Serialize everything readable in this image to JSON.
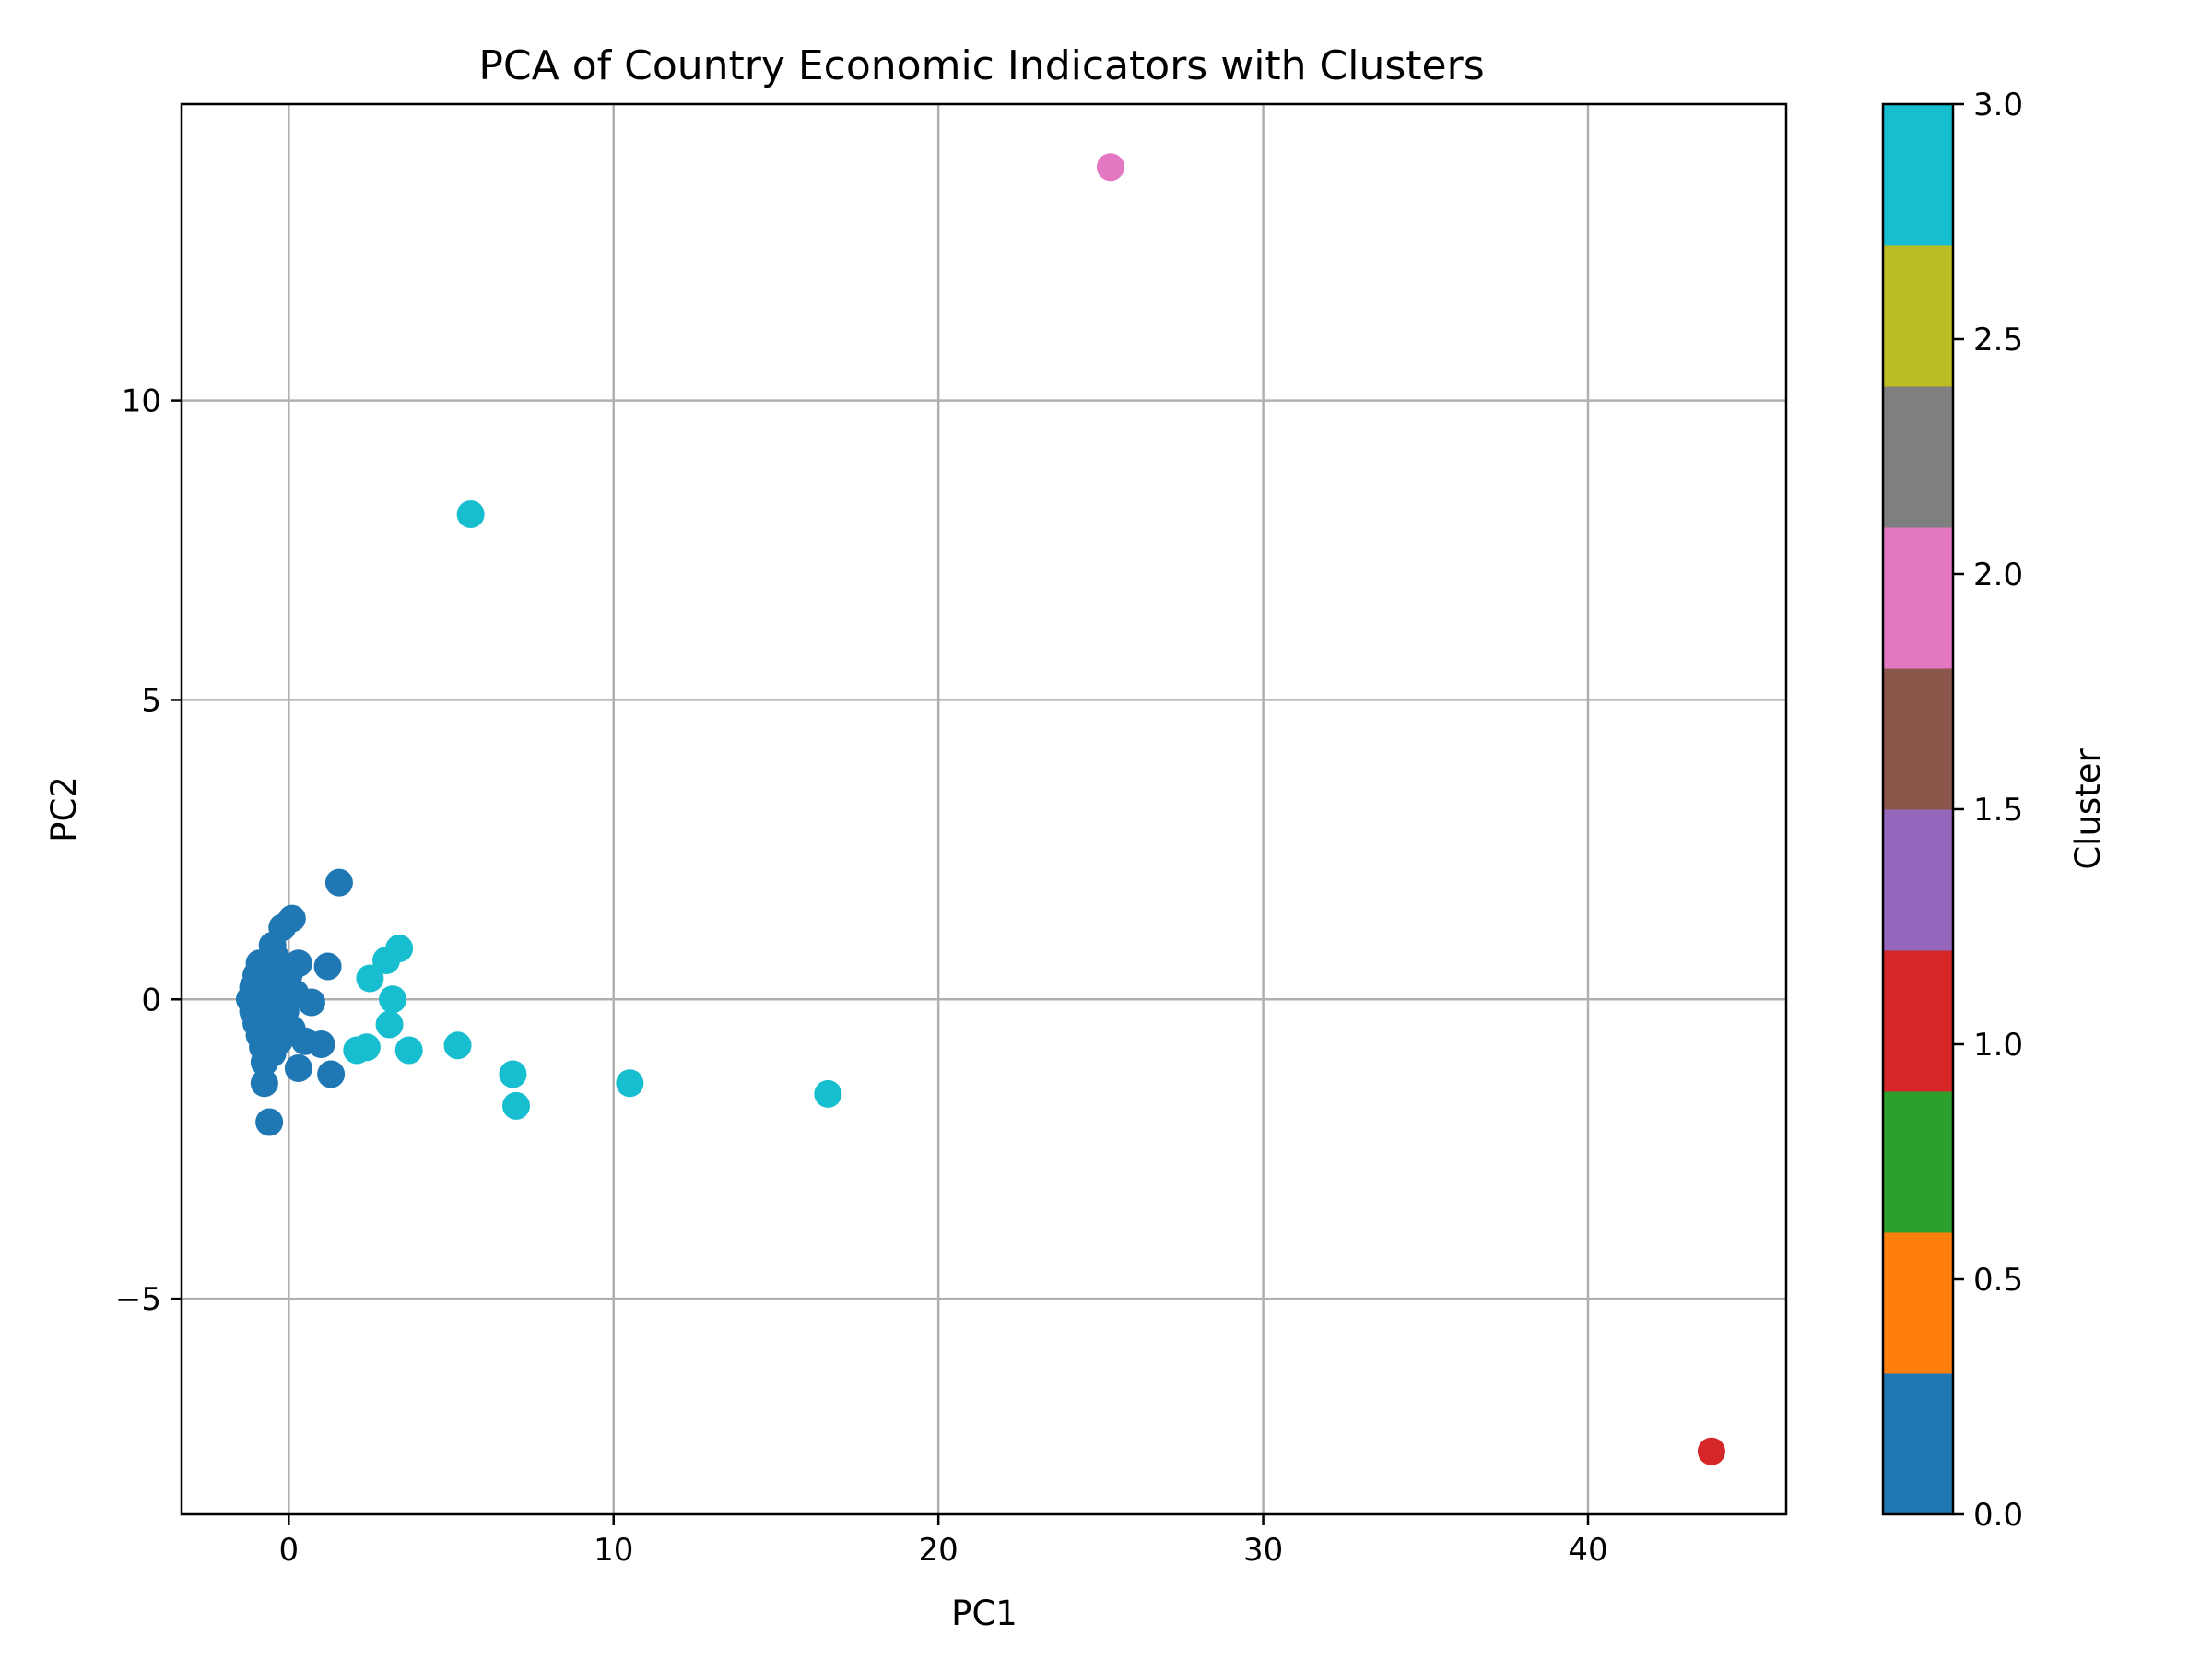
{
  "chart_data": {
    "type": "scatter",
    "title": "PCA of Country Economic Indicators with Clusters",
    "xlabel": "PC1",
    "ylabel": "PC2",
    "xlim": [
      -3.3,
      46.1
    ],
    "ylim": [
      -8.6,
      14.95
    ],
    "xticks": [
      0,
      10,
      20,
      30,
      40
    ],
    "yticks": [
      -5,
      0,
      5,
      10
    ],
    "xtick_labels": [
      "0",
      "10",
      "20",
      "30",
      "40"
    ],
    "ytick_labels": [
      "−5",
      "0",
      "5",
      "10"
    ],
    "grid": true,
    "colorbar": {
      "label": "Cluster",
      "range": [
        0.0,
        3.0
      ],
      "ticks": [
        0.0,
        0.5,
        1.0,
        1.5,
        2.0,
        2.5,
        3.0
      ],
      "tick_labels": [
        "0.0",
        "0.5",
        "1.0",
        "1.5",
        "2.0",
        "2.5",
        "3.0"
      ],
      "colors": [
        "#1f77b4",
        "#ff7f0e",
        "#2ca02c",
        "#d62728",
        "#9467bd",
        "#8c564b",
        "#e377c2",
        "#7f7f7f",
        "#bcbd22",
        "#17becf"
      ]
    },
    "cluster_colors": {
      "0": "#1f77b4",
      "1": "#d62728",
      "2": "#e377c2",
      "3": "#17becf"
    },
    "points": [
      {
        "x": -1.2,
        "y": 0.0,
        "cluster": 0
      },
      {
        "x": -1.1,
        "y": 0.2,
        "cluster": 0
      },
      {
        "x": -1.1,
        "y": -0.2,
        "cluster": 0
      },
      {
        "x": -1.0,
        "y": 0.4,
        "cluster": 0
      },
      {
        "x": -1.0,
        "y": -0.4,
        "cluster": 0
      },
      {
        "x": -0.9,
        "y": 0.6,
        "cluster": 0
      },
      {
        "x": -0.9,
        "y": -0.6,
        "cluster": 0
      },
      {
        "x": -0.8,
        "y": -0.8,
        "cluster": 0
      },
      {
        "x": -0.8,
        "y": 0.1,
        "cluster": 0
      },
      {
        "x": -0.7,
        "y": 0.3,
        "cluster": 0
      },
      {
        "x": -0.7,
        "y": -0.3,
        "cluster": 0
      },
      {
        "x": -0.6,
        "y": 0.5,
        "cluster": 0
      },
      {
        "x": -0.6,
        "y": -0.5,
        "cluster": 0
      },
      {
        "x": -0.5,
        "y": 0.9,
        "cluster": 0
      },
      {
        "x": -0.5,
        "y": -0.9,
        "cluster": 0
      },
      {
        "x": -0.4,
        "y": 0.0,
        "cluster": 0
      },
      {
        "x": -0.4,
        "y": 0.7,
        "cluster": 0
      },
      {
        "x": -0.3,
        "y": -0.7,
        "cluster": 0
      },
      {
        "x": -0.2,
        "y": 1.2,
        "cluster": 0
      },
      {
        "x": -0.2,
        "y": 0.2,
        "cluster": 0
      },
      {
        "x": -0.1,
        "y": -0.2,
        "cluster": 0
      },
      {
        "x": 0.1,
        "y": 1.35,
        "cluster": 0
      },
      {
        "x": 0.0,
        "y": 0.4,
        "cluster": 0
      },
      {
        "x": 0.1,
        "y": -0.5,
        "cluster": 0
      },
      {
        "x": 0.3,
        "y": 0.6,
        "cluster": 0
      },
      {
        "x": 0.3,
        "y": -1.15,
        "cluster": 0
      },
      {
        "x": 0.5,
        "y": -0.7,
        "cluster": 0
      },
      {
        "x": 0.7,
        "y": -0.05,
        "cluster": 0
      },
      {
        "x": 1.0,
        "y": -0.75,
        "cluster": 0
      },
      {
        "x": 1.2,
        "y": 0.55,
        "cluster": 0
      },
      {
        "x": 1.3,
        "y": -1.25,
        "cluster": 0
      },
      {
        "x": 1.55,
        "y": 1.95,
        "cluster": 0
      },
      {
        "x": -0.75,
        "y": -1.05,
        "cluster": 0
      },
      {
        "x": -0.75,
        "y": -1.4,
        "cluster": 0
      },
      {
        "x": -0.6,
        "y": -2.05,
        "cluster": 0
      },
      {
        "x": -0.5,
        "y": 0.25,
        "cluster": 0
      },
      {
        "x": 0.2,
        "y": 0.1,
        "cluster": 0
      },
      {
        "x": 43.8,
        "y": -7.55,
        "cluster": 1
      },
      {
        "x": 25.3,
        "y": 13.9,
        "cluster": 2
      },
      {
        "x": 5.6,
        "y": 8.1,
        "cluster": 3
      },
      {
        "x": 2.1,
        "y": -0.85,
        "cluster": 3
      },
      {
        "x": 2.4,
        "y": -0.8,
        "cluster": 3
      },
      {
        "x": 2.5,
        "y": 0.35,
        "cluster": 3
      },
      {
        "x": 3.0,
        "y": 0.65,
        "cluster": 3
      },
      {
        "x": 3.4,
        "y": 0.85,
        "cluster": 3
      },
      {
        "x": 3.2,
        "y": 0.0,
        "cluster": 3
      },
      {
        "x": 3.1,
        "y": -0.42,
        "cluster": 3
      },
      {
        "x": 3.7,
        "y": -0.85,
        "cluster": 3
      },
      {
        "x": 5.2,
        "y": -0.77,
        "cluster": 3
      },
      {
        "x": 6.9,
        "y": -1.25,
        "cluster": 3
      },
      {
        "x": 7.0,
        "y": -1.78,
        "cluster": 3
      },
      {
        "x": 10.5,
        "y": -1.4,
        "cluster": 3
      },
      {
        "x": 16.6,
        "y": -1.58,
        "cluster": 3
      }
    ]
  }
}
